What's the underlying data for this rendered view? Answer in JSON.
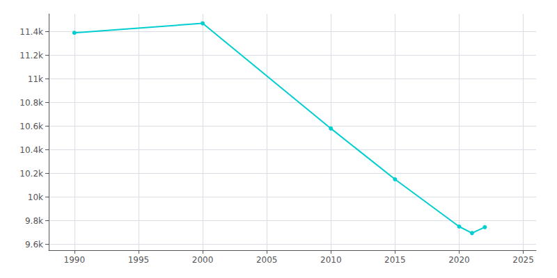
{
  "chart_data": {
    "type": "line",
    "x": [
      1990,
      2000,
      2010,
      2015,
      2020,
      2021,
      2022
    ],
    "values": [
      11390,
      11470,
      10580,
      10150,
      9750,
      9695,
      9745
    ],
    "color": "#00CED1",
    "marker": "circle",
    "xlim": [
      1988,
      2026
    ],
    "ylim": [
      9550,
      11550
    ],
    "xticks": [
      1990,
      1995,
      2000,
      2005,
      2010,
      2015,
      2020,
      2025
    ],
    "yticks": [
      {
        "value": 9600,
        "label": "9.6k"
      },
      {
        "value": 9800,
        "label": "9.8k"
      },
      {
        "value": 10000,
        "label": "10k"
      },
      {
        "value": 10200,
        "label": "10.2k"
      },
      {
        "value": 10400,
        "label": "10.4k"
      },
      {
        "value": 10600,
        "label": "10.6k"
      },
      {
        "value": 10800,
        "label": "10.8k"
      },
      {
        "value": 11000,
        "label": "11k"
      },
      {
        "value": 11200,
        "label": "11.2k"
      },
      {
        "value": 11400,
        "label": "11.4k"
      }
    ],
    "grid": true
  }
}
